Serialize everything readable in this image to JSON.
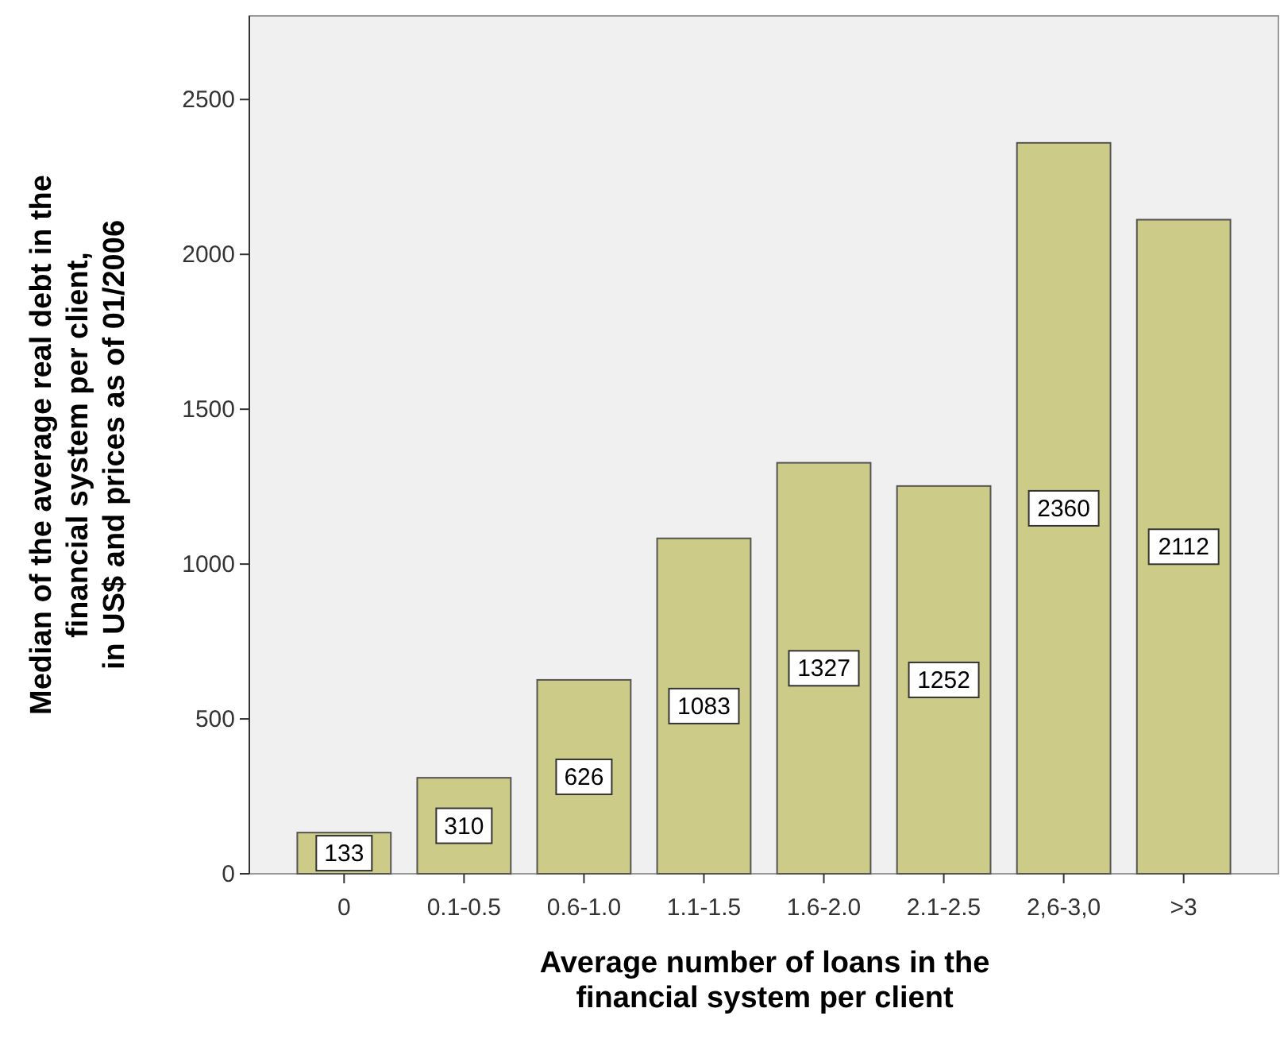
{
  "chart_data": {
    "type": "bar",
    "xlabel": "Average number of loans in the\nfinancial system per client",
    "ylabel": "Median of the average real debt in the\nfinancial system per client,\nin US$ and prices as of 01/2006",
    "categories": [
      "0",
      "0.1-0.5",
      "0.6-1.0",
      "1.1-1.5",
      "1.6-2.0",
      "2.1-2.5",
      "2,6-3,0",
      ">3"
    ],
    "values": [
      133,
      310,
      626,
      1083,
      1327,
      1252,
      2360,
      2112
    ],
    "color": "#cccc88",
    "ylim": [
      0,
      2770
    ],
    "yticks": [
      0,
      500,
      1000,
      1500,
      2000,
      2500
    ],
    "grid": false,
    "data_labels": true
  }
}
